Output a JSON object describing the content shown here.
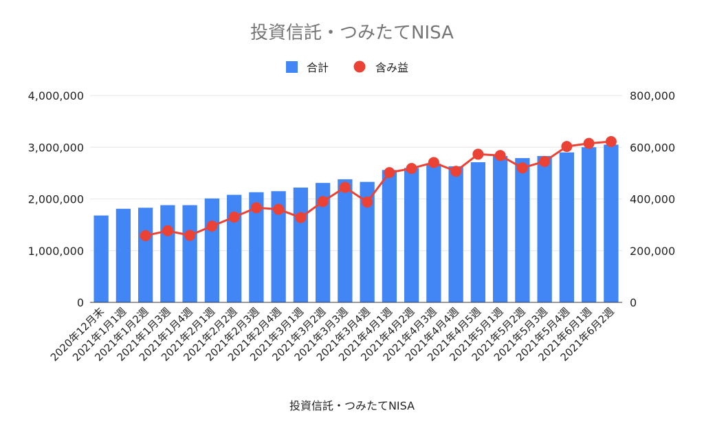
{
  "chart_data": {
    "type": "bar",
    "title": "投資信託・つみたてNISA",
    "xlabel": "投資信託・つみたてNISA",
    "ylabel": "",
    "y2label": "",
    "legend_position": "top",
    "grid": true,
    "ylim": [
      0,
      4000000
    ],
    "y2lim": [
      0,
      800000
    ],
    "y_ticks": [
      "0",
      "1,000,000",
      "2,000,000",
      "3,000,000",
      "4,000,000"
    ],
    "y2_ticks": [
      "0",
      "200,000",
      "400,000",
      "600,000",
      "800,000"
    ],
    "categories": [
      "2020年12月末",
      "2021年1月1週",
      "2021年1月2週",
      "2021年1月3週",
      "2021年1月4週",
      "2021年2月1週",
      "2021年2月2週",
      "2021年2月3週",
      "2021年2月4週",
      "2021年3月1週",
      "2021年3月2週",
      "2021年3月3週",
      "2021年3月4週",
      "2021年4月1週",
      "2021年4月2週",
      "2021年4月3週",
      "2021年4月4週",
      "2021年4月5週",
      "2021年5月1週",
      "2021年5月2週",
      "2021年5月3週",
      "2021年5月4週",
      "2021年6月1週",
      "2021年6月2週"
    ],
    "series": [
      {
        "name": "合計",
        "type": "bar",
        "axis": "left",
        "color": "#4285F4",
        "values": [
          1680000,
          1810000,
          1830000,
          1880000,
          1880000,
          2010000,
          2080000,
          2130000,
          2150000,
          2220000,
          2310000,
          2380000,
          2330000,
          2560000,
          2600000,
          2680000,
          2630000,
          2710000,
          2830000,
          2790000,
          2830000,
          2900000,
          3000000,
          3050000
        ]
      },
      {
        "name": "含み益",
        "type": "line",
        "axis": "right",
        "color": "#EA4335",
        "values": [
          null,
          null,
          258000,
          277000,
          259000,
          295000,
          330000,
          366000,
          360000,
          328000,
          390000,
          445000,
          388000,
          502000,
          518000,
          541000,
          507000,
          573000,
          568000,
          520000,
          545000,
          603000,
          615000,
          622000
        ]
      }
    ]
  }
}
